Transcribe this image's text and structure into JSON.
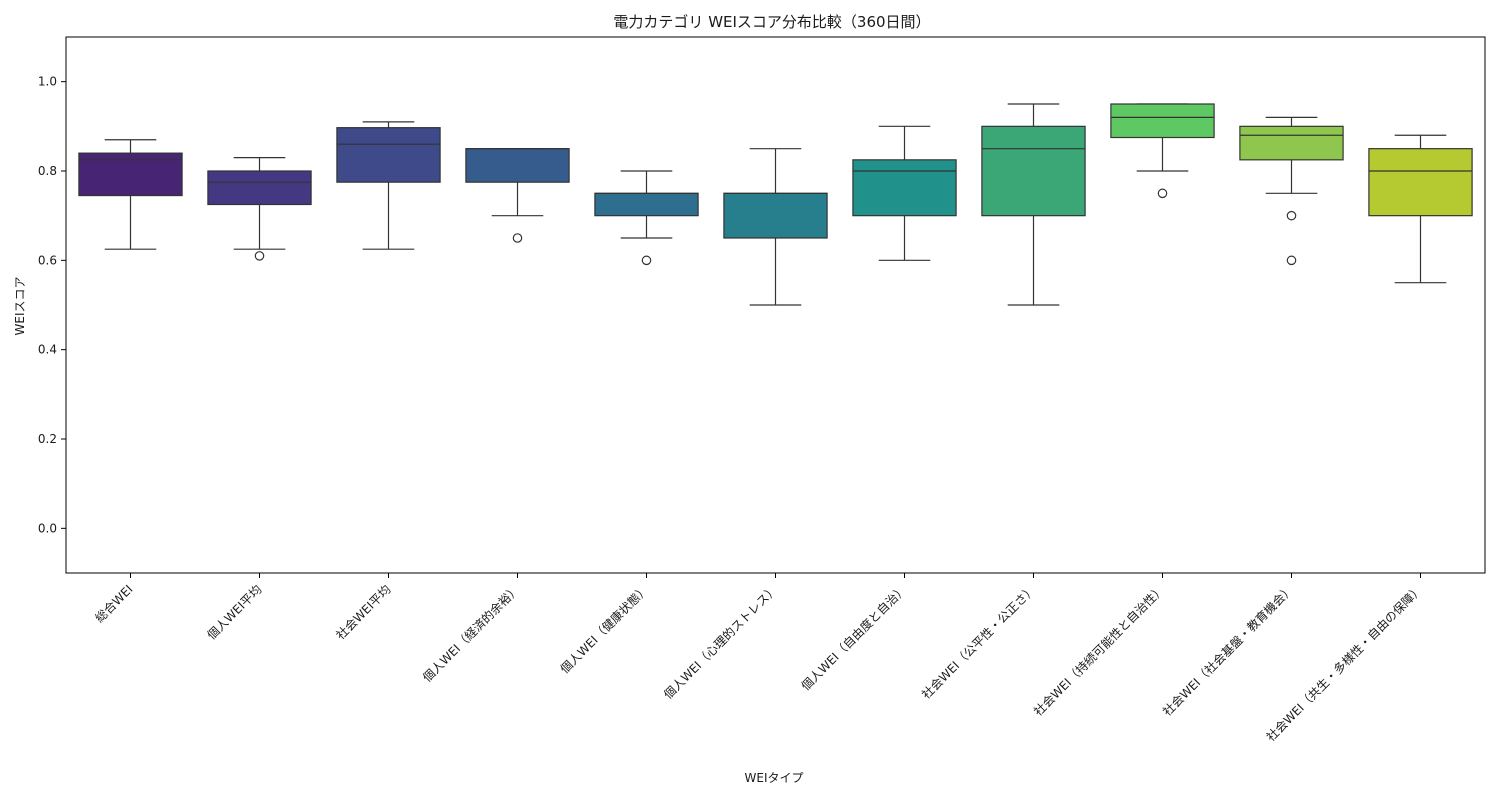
{
  "chart_data": {
    "type": "box",
    "title": "電力カテゴリ WEIスコア分布比較（360日間）",
    "xlabel": "WEIタイプ",
    "ylabel": "WEIスコア",
    "ylim": [
      -0.1,
      1.1
    ],
    "yticks": [
      0.0,
      0.2,
      0.4,
      0.6,
      0.8,
      1.0
    ],
    "ytick_labels": [
      "0.0",
      "0.2",
      "0.4",
      "0.6",
      "0.8",
      "1.0"
    ],
    "grid": false,
    "legend": "none",
    "palette": "viridis",
    "categories": [
      {
        "label": "総合WEI",
        "color": "#482475",
        "whisker_low": 0.625,
        "q1": 0.745,
        "median": 0.825,
        "q3": 0.84,
        "whisker_high": 0.87,
        "outliers": []
      },
      {
        "label": "個人WEI平均",
        "color": "#453882",
        "whisker_low": 0.625,
        "q1": 0.725,
        "median": 0.775,
        "q3": 0.8,
        "whisker_high": 0.83,
        "outliers": [
          0.61
        ]
      },
      {
        "label": "社会WEI平均",
        "color": "#3e4a89",
        "whisker_low": 0.625,
        "q1": 0.775,
        "median": 0.86,
        "q3": 0.897,
        "whisker_high": 0.91,
        "outliers": []
      },
      {
        "label": "個人WEI（経済的余裕）",
        "color": "#365c8d",
        "whisker_low": 0.7,
        "q1": 0.775,
        "median": 0.85,
        "q3": 0.85,
        "whisker_high": 0.85,
        "outliers": [
          0.65
        ]
      },
      {
        "label": "個人WEI（健康状態）",
        "color": "#2e6e8e",
        "whisker_low": 0.65,
        "q1": 0.7,
        "median": 0.75,
        "q3": 0.75,
        "whisker_high": 0.8,
        "outliers": [
          0.6
        ]
      },
      {
        "label": "個人WEI（心理的ストレス）",
        "color": "#277f8e",
        "whisker_low": 0.5,
        "q1": 0.65,
        "median": 0.75,
        "q3": 0.75,
        "whisker_high": 0.85,
        "outliers": []
      },
      {
        "label": "個人WEI（自由度と自治）",
        "color": "#21918c",
        "whisker_low": 0.6,
        "q1": 0.7,
        "median": 0.8,
        "q3": 0.825,
        "whisker_high": 0.9,
        "outliers": []
      },
      {
        "label": "社会WEI（公平性・公正さ）",
        "color": "#3ba676",
        "whisker_low": 0.5,
        "q1": 0.7,
        "median": 0.85,
        "q3": 0.9,
        "whisker_high": 0.95,
        "outliers": []
      },
      {
        "label": "社会WEI（持続可能性と自治性）",
        "color": "#5ec962",
        "whisker_low": 0.8,
        "q1": 0.875,
        "median": 0.92,
        "q3": 0.95,
        "whisker_high": 0.95,
        "outliers": [
          0.75
        ]
      },
      {
        "label": "社会WEI（社会基盤・教育機会）",
        "color": "#8fc74e",
        "whisker_low": 0.75,
        "q1": 0.825,
        "median": 0.88,
        "q3": 0.9,
        "whisker_high": 0.92,
        "outliers": [
          0.7,
          0.6
        ]
      },
      {
        "label": "社会WEI（共生・多様性・自由の保障）",
        "color": "#b5c930",
        "whisker_low": 0.55,
        "q1": 0.7,
        "median": 0.8,
        "q3": 0.85,
        "whisker_high": 0.88,
        "outliers": []
      }
    ]
  }
}
